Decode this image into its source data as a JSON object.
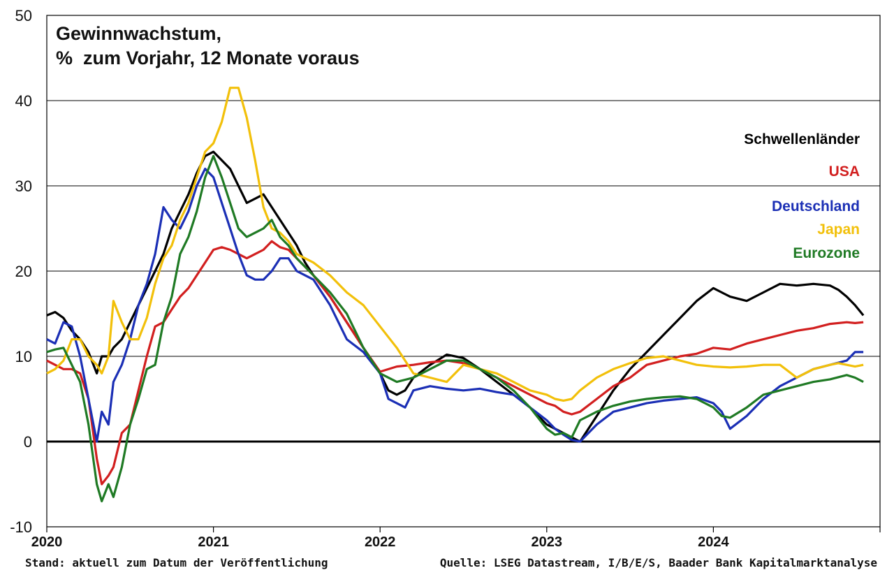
{
  "chart_data": {
    "type": "line",
    "title": "Gewinnwachstum,",
    "subtitle": "%  zum Vorjahr, 12 Monate voraus",
    "ylim": [
      -10,
      50
    ],
    "yticks": [
      -10,
      0,
      10,
      20,
      30,
      40,
      50
    ],
    "ytick_labels": [
      "-10",
      "0",
      "10",
      "20",
      "30",
      "40",
      "50"
    ],
    "xlim": [
      2020.0,
      2025.0
    ],
    "xticks": [
      2020,
      2021,
      2022,
      2023,
      2024
    ],
    "xtick_labels": [
      "2020",
      "2021",
      "2022",
      "2023",
      "2024"
    ],
    "grid": true,
    "legend_position": "right",
    "series": [
      {
        "name": "Schwellenländer",
        "color": "#000000",
        "x": [
          2020.0,
          2020.05,
          2020.1,
          2020.15,
          2020.2,
          2020.25,
          2020.3,
          2020.33,
          2020.37,
          2020.4,
          2020.45,
          2020.5,
          2020.55,
          2020.6,
          2020.65,
          2020.7,
          2020.75,
          2020.8,
          2020.85,
          2020.9,
          2020.95,
          2021.0,
          2021.05,
          2021.1,
          2021.15,
          2021.2,
          2021.25,
          2021.3,
          2021.35,
          2021.4,
          2021.45,
          2021.5,
          2021.55,
          2021.6,
          2021.7,
          2021.8,
          2021.9,
          2022.0,
          2022.05,
          2022.1,
          2022.15,
          2022.2,
          2022.3,
          2022.4,
          2022.5,
          2022.6,
          2022.7,
          2022.8,
          2022.9,
          2023.0,
          2023.05,
          2023.1,
          2023.15,
          2023.2,
          2023.3,
          2023.4,
          2023.5,
          2023.6,
          2023.7,
          2023.8,
          2023.9,
          2024.0,
          2024.05,
          2024.1,
          2024.2,
          2024.3,
          2024.4,
          2024.5,
          2024.6,
          2024.7,
          2024.75,
          2024.8,
          2024.85,
          2024.9
        ],
        "values": [
          14.8,
          15.2,
          14.5,
          13.0,
          12.0,
          10.5,
          8.0,
          10.0,
          10.0,
          11.0,
          12.0,
          14.0,
          16.0,
          18.0,
          20.0,
          22.0,
          25.0,
          27.0,
          29.0,
          31.5,
          33.5,
          34.0,
          33.0,
          32.0,
          30.0,
          28.0,
          28.5,
          29.0,
          27.5,
          26.0,
          24.5,
          23.0,
          21.0,
          19.5,
          17.0,
          14.0,
          11.0,
          8.0,
          6.0,
          5.5,
          6.0,
          7.5,
          9.0,
          10.2,
          9.8,
          8.5,
          7.0,
          5.5,
          4.0,
          2.0,
          1.5,
          1.0,
          0.5,
          0.0,
          3.0,
          6.0,
          8.5,
          10.5,
          12.5,
          14.5,
          16.5,
          18.0,
          17.5,
          17.0,
          16.5,
          17.5,
          18.5,
          18.3,
          18.5,
          18.3,
          17.8,
          17.0,
          16.0,
          14.8
        ]
      },
      {
        "name": "USA",
        "color": "#d21f1f",
        "x": [
          2020.0,
          2020.05,
          2020.1,
          2020.15,
          2020.2,
          2020.25,
          2020.3,
          2020.33,
          2020.37,
          2020.4,
          2020.45,
          2020.5,
          2020.55,
          2020.6,
          2020.65,
          2020.7,
          2020.75,
          2020.8,
          2020.85,
          2020.9,
          2020.95,
          2021.0,
          2021.05,
          2021.1,
          2021.15,
          2021.2,
          2021.25,
          2021.3,
          2021.35,
          2021.4,
          2021.45,
          2021.5,
          2021.55,
          2021.6,
          2021.7,
          2021.8,
          2021.9,
          2022.0,
          2022.1,
          2022.2,
          2022.3,
          2022.4,
          2022.5,
          2022.6,
          2022.7,
          2022.8,
          2022.9,
          2023.0,
          2023.05,
          2023.1,
          2023.15,
          2023.2,
          2023.3,
          2023.4,
          2023.5,
          2023.6,
          2023.7,
          2023.8,
          2023.9,
          2024.0,
          2024.1,
          2024.2,
          2024.3,
          2024.4,
          2024.5,
          2024.6,
          2024.7,
          2024.8,
          2024.85,
          2024.9
        ],
        "values": [
          9.5,
          9.0,
          8.5,
          8.5,
          8.0,
          5.0,
          -2.0,
          -5.0,
          -4.0,
          -3.0,
          1.0,
          2.0,
          6.0,
          10.0,
          13.5,
          14.0,
          15.5,
          17.0,
          18.0,
          19.5,
          21.0,
          22.5,
          22.8,
          22.5,
          22.0,
          21.5,
          22.0,
          22.5,
          23.5,
          22.8,
          22.5,
          21.5,
          20.5,
          19.5,
          17.0,
          14.0,
          11.0,
          8.2,
          8.8,
          9.0,
          9.3,
          9.5,
          9.2,
          8.5,
          7.5,
          6.5,
          5.5,
          4.5,
          4.2,
          3.5,
          3.2,
          3.5,
          5.0,
          6.5,
          7.5,
          9.0,
          9.5,
          10.0,
          10.3,
          11.0,
          10.8,
          11.5,
          12.0,
          12.5,
          13.0,
          13.3,
          13.8,
          14.0,
          13.9,
          14.0
        ]
      },
      {
        "name": "Deutschland",
        "color": "#1b2fb5",
        "x": [
          2020.0,
          2020.05,
          2020.1,
          2020.15,
          2020.2,
          2020.25,
          2020.3,
          2020.33,
          2020.37,
          2020.4,
          2020.45,
          2020.5,
          2020.55,
          2020.6,
          2020.65,
          2020.7,
          2020.75,
          2020.8,
          2020.85,
          2020.9,
          2020.95,
          2021.0,
          2021.05,
          2021.1,
          2021.15,
          2021.2,
          2021.25,
          2021.3,
          2021.35,
          2021.4,
          2021.45,
          2021.5,
          2021.55,
          2021.6,
          2021.7,
          2021.8,
          2021.9,
          2022.0,
          2022.05,
          2022.1,
          2022.15,
          2022.2,
          2022.3,
          2022.4,
          2022.5,
          2022.6,
          2022.7,
          2022.8,
          2022.9,
          2023.0,
          2023.05,
          2023.1,
          2023.15,
          2023.2,
          2023.3,
          2023.4,
          2023.5,
          2023.6,
          2023.7,
          2023.8,
          2023.9,
          2024.0,
          2024.05,
          2024.1,
          2024.2,
          2024.3,
          2024.4,
          2024.5,
          2024.6,
          2024.7,
          2024.8,
          2024.85,
          2024.9
        ],
        "values": [
          12.0,
          11.5,
          14.0,
          13.5,
          10.0,
          5.0,
          0.0,
          3.5,
          2.0,
          7.0,
          9.0,
          12.0,
          16.0,
          18.5,
          22.0,
          27.5,
          26.0,
          25.0,
          27.0,
          30.0,
          32.0,
          31.0,
          28.0,
          25.0,
          22.0,
          19.5,
          19.0,
          19.0,
          20.0,
          21.5,
          21.5,
          20.0,
          19.5,
          19.0,
          16.0,
          12.0,
          10.5,
          8.0,
          5.0,
          4.5,
          4.0,
          6.0,
          6.5,
          6.2,
          6.0,
          6.2,
          5.8,
          5.5,
          4.0,
          2.5,
          1.5,
          0.8,
          0.2,
          0.0,
          2.0,
          3.5,
          4.0,
          4.5,
          4.8,
          5.0,
          5.2,
          4.5,
          3.5,
          1.5,
          3.0,
          5.0,
          6.5,
          7.5,
          8.5,
          9.0,
          9.5,
          10.5,
          10.5
        ]
      },
      {
        "name": "Japan",
        "color": "#f2c00a",
        "x": [
          2020.0,
          2020.05,
          2020.1,
          2020.15,
          2020.2,
          2020.25,
          2020.3,
          2020.33,
          2020.37,
          2020.4,
          2020.45,
          2020.5,
          2020.55,
          2020.6,
          2020.65,
          2020.7,
          2020.75,
          2020.8,
          2020.85,
          2020.9,
          2020.95,
          2021.0,
          2021.05,
          2021.1,
          2021.15,
          2021.2,
          2021.25,
          2021.3,
          2021.35,
          2021.4,
          2021.45,
          2021.5,
          2021.55,
          2021.6,
          2021.7,
          2021.8,
          2021.9,
          2022.0,
          2022.1,
          2022.2,
          2022.3,
          2022.4,
          2022.5,
          2022.6,
          2022.7,
          2022.8,
          2022.9,
          2023.0,
          2023.05,
          2023.1,
          2023.15,
          2023.2,
          2023.3,
          2023.4,
          2023.5,
          2023.6,
          2023.7,
          2023.8,
          2023.9,
          2024.0,
          2024.1,
          2024.2,
          2024.3,
          2024.4,
          2024.5,
          2024.6,
          2024.7,
          2024.75,
          2024.8,
          2024.85,
          2024.9
        ],
        "values": [
          8.0,
          8.5,
          9.5,
          12.0,
          12.0,
          10.0,
          9.0,
          8.0,
          10.0,
          16.5,
          14.0,
          12.0,
          12.0,
          14.5,
          18.5,
          21.5,
          23.0,
          26.0,
          28.0,
          31.0,
          34.0,
          35.0,
          37.5,
          41.5,
          41.5,
          38.0,
          33.0,
          27.5,
          25.0,
          24.5,
          23.5,
          22.0,
          21.5,
          21.0,
          19.5,
          17.5,
          16.0,
          13.5,
          11.0,
          8.0,
          7.5,
          7.0,
          9.0,
          8.5,
          8.0,
          7.0,
          6.0,
          5.5,
          5.0,
          4.8,
          5.0,
          6.0,
          7.5,
          8.5,
          9.2,
          9.8,
          10.0,
          9.5,
          9.0,
          8.8,
          8.7,
          8.8,
          9.0,
          9.0,
          7.5,
          8.5,
          9.0,
          9.2,
          9.0,
          8.8,
          9.0
        ]
      },
      {
        "name": "Eurozone",
        "color": "#1f7a24",
        "x": [
          2020.0,
          2020.05,
          2020.1,
          2020.15,
          2020.2,
          2020.25,
          2020.3,
          2020.33,
          2020.37,
          2020.4,
          2020.45,
          2020.5,
          2020.55,
          2020.6,
          2020.65,
          2020.7,
          2020.75,
          2020.8,
          2020.85,
          2020.9,
          2020.95,
          2021.0,
          2021.05,
          2021.1,
          2021.15,
          2021.2,
          2021.25,
          2021.3,
          2021.35,
          2021.4,
          2021.45,
          2021.5,
          2021.55,
          2021.6,
          2021.7,
          2021.8,
          2021.9,
          2022.0,
          2022.1,
          2022.2,
          2022.3,
          2022.4,
          2022.5,
          2022.6,
          2022.7,
          2022.8,
          2022.9,
          2023.0,
          2023.05,
          2023.1,
          2023.15,
          2023.2,
          2023.3,
          2023.4,
          2023.5,
          2023.6,
          2023.7,
          2023.8,
          2023.9,
          2024.0,
          2024.05,
          2024.1,
          2024.2,
          2024.3,
          2024.4,
          2024.5,
          2024.6,
          2024.7,
          2024.8,
          2024.85,
          2024.9
        ],
        "values": [
          10.5,
          10.8,
          11.0,
          9.0,
          7.0,
          2.0,
          -5.0,
          -7.0,
          -5.0,
          -6.5,
          -3.0,
          2.0,
          5.0,
          8.5,
          9.0,
          14.0,
          17.0,
          22.0,
          24.0,
          27.0,
          31.0,
          33.5,
          31.0,
          28.0,
          25.0,
          24.0,
          24.5,
          25.0,
          26.0,
          24.0,
          23.0,
          21.5,
          20.5,
          19.5,
          17.5,
          15.0,
          11.0,
          8.0,
          7.0,
          7.5,
          8.5,
          9.5,
          9.5,
          8.5,
          7.5,
          6.0,
          4.0,
          1.5,
          0.8,
          1.0,
          0.5,
          2.5,
          3.5,
          4.2,
          4.7,
          5.0,
          5.2,
          5.3,
          5.0,
          4.0,
          3.0,
          2.8,
          4.0,
          5.5,
          6.0,
          6.5,
          7.0,
          7.3,
          7.8,
          7.5,
          7.0
        ]
      }
    ]
  },
  "footer": {
    "left": "Stand: aktuell zum Datum der Veröffentlichung",
    "right": "Quelle: LSEG Datastream, I/B/E/S, Baader Bank Kapitalmarktanalyse"
  }
}
